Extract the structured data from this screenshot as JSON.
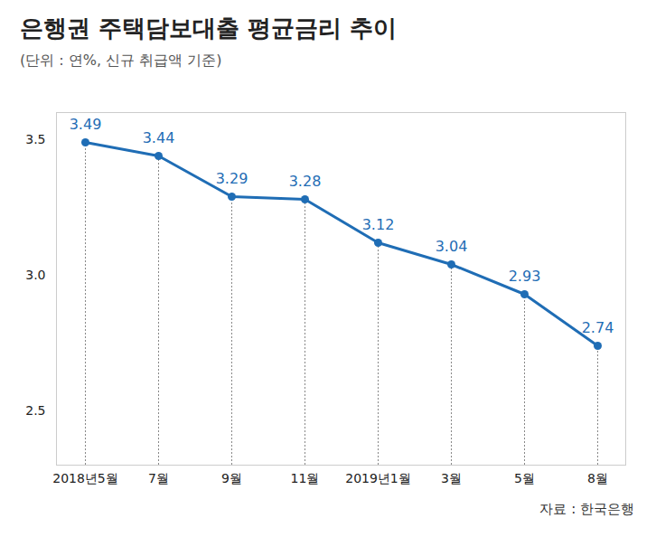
{
  "chart_data": {
    "type": "line",
    "title": "은행권 주택담보대출 평균금리 추이",
    "subtitle": "(단위 :  연%, 신규 취급액 기준)",
    "source": "자료 : 한국은행",
    "categories": [
      "2018년5월",
      "7월",
      "9월",
      "11월",
      "2019년1월",
      "3월",
      "5월",
      "8월"
    ],
    "values": [
      3.49,
      3.44,
      3.29,
      3.28,
      3.12,
      3.04,
      2.93,
      2.74
    ],
    "color": "#1f6db5",
    "marker": "circle",
    "data_labels": true,
    "ylim": [
      2.3,
      3.6
    ],
    "yticks": [
      2.5,
      {
        "value": 3,
        "label": "3.0"
      },
      3.5
    ],
    "grid": false
  }
}
